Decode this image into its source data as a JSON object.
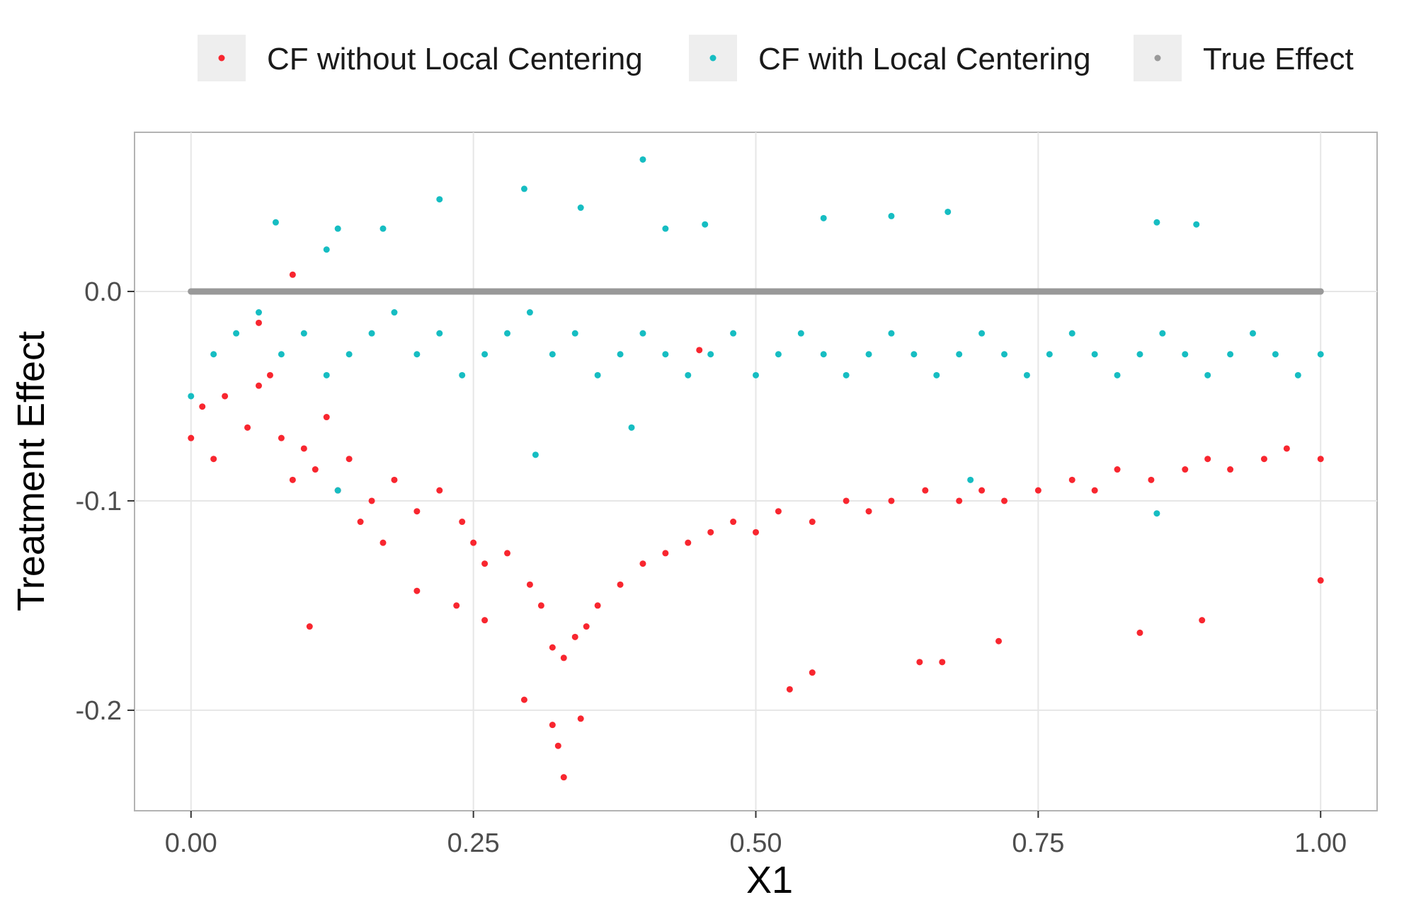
{
  "chart_data": {
    "type": "scatter",
    "xlabel": "X1",
    "ylabel": "Treatment Effect",
    "xlim": [
      -0.05,
      1.05
    ],
    "ylim": [
      -0.248,
      0.076
    ],
    "x_ticks": [
      0,
      0.25,
      0.5,
      0.75,
      1
    ],
    "x_tick_labels": [
      "0.00",
      "0.25",
      "0.50",
      "0.75",
      "1.00"
    ],
    "y_ticks": [
      -0.2,
      -0.1,
      0.0
    ],
    "y_tick_labels": [
      "-0.2",
      "-0.1",
      "0.0"
    ],
    "grid": true,
    "legend_position": "top",
    "series": [
      {
        "name": "CF without Local Centering",
        "color": "#F8262F",
        "points": [
          [
            0.0,
            -0.07
          ],
          [
            0.01,
            -0.055
          ],
          [
            0.02,
            -0.08
          ],
          [
            0.03,
            -0.05
          ],
          [
            0.05,
            -0.065
          ],
          [
            0.06,
            -0.045
          ],
          [
            0.07,
            -0.04
          ],
          [
            0.08,
            -0.07
          ],
          [
            0.09,
            -0.09
          ],
          [
            0.1,
            -0.075
          ],
          [
            0.11,
            -0.085
          ],
          [
            0.12,
            -0.06
          ],
          [
            0.13,
            -0.095
          ],
          [
            0.14,
            -0.08
          ],
          [
            0.15,
            -0.11
          ],
          [
            0.16,
            -0.1
          ],
          [
            0.17,
            -0.12
          ],
          [
            0.18,
            -0.09
          ],
          [
            0.2,
            -0.105
          ],
          [
            0.22,
            -0.095
          ],
          [
            0.24,
            -0.11
          ],
          [
            0.25,
            -0.12
          ],
          [
            0.26,
            -0.13
          ],
          [
            0.28,
            -0.125
          ],
          [
            0.3,
            -0.14
          ],
          [
            0.31,
            -0.15
          ],
          [
            0.32,
            -0.17
          ],
          [
            0.33,
            -0.175
          ],
          [
            0.34,
            -0.165
          ],
          [
            0.35,
            -0.16
          ],
          [
            0.36,
            -0.15
          ],
          [
            0.38,
            -0.14
          ],
          [
            0.4,
            -0.13
          ],
          [
            0.42,
            -0.125
          ],
          [
            0.44,
            -0.12
          ],
          [
            0.46,
            -0.115
          ],
          [
            0.48,
            -0.11
          ],
          [
            0.5,
            -0.115
          ],
          [
            0.52,
            -0.105
          ],
          [
            0.55,
            -0.11
          ],
          [
            0.58,
            -0.1
          ],
          [
            0.6,
            -0.105
          ],
          [
            0.62,
            -0.1
          ],
          [
            0.65,
            -0.095
          ],
          [
            0.68,
            -0.1
          ],
          [
            0.7,
            -0.095
          ],
          [
            0.72,
            -0.1
          ],
          [
            0.75,
            -0.095
          ],
          [
            0.78,
            -0.09
          ],
          [
            0.8,
            -0.095
          ],
          [
            0.82,
            -0.085
          ],
          [
            0.85,
            -0.09
          ],
          [
            0.88,
            -0.085
          ],
          [
            0.9,
            -0.08
          ],
          [
            0.92,
            -0.085
          ],
          [
            0.95,
            -0.08
          ],
          [
            0.97,
            -0.075
          ],
          [
            1.0,
            -0.08
          ],
          [
            0.09,
            0.008
          ],
          [
            0.105,
            -0.16
          ],
          [
            0.33,
            -0.232
          ],
          [
            0.325,
            -0.217
          ],
          [
            0.32,
            -0.207
          ],
          [
            0.345,
            -0.204
          ],
          [
            0.53,
            -0.19
          ],
          [
            0.55,
            -0.182
          ],
          [
            0.645,
            -0.177
          ],
          [
            0.665,
            -0.177
          ],
          [
            0.715,
            -0.167
          ],
          [
            0.84,
            -0.163
          ],
          [
            0.895,
            -0.157
          ],
          [
            1.0,
            -0.138
          ],
          [
            0.06,
            -0.015
          ],
          [
            0.2,
            -0.143
          ],
          [
            0.235,
            -0.15
          ],
          [
            0.26,
            -0.157
          ],
          [
            0.295,
            -0.195
          ],
          [
            0.45,
            -0.028
          ]
        ]
      },
      {
        "name": "CF with Local Centering",
        "color": "#16BDC2",
        "points": [
          [
            0.0,
            -0.05
          ],
          [
            0.02,
            -0.03
          ],
          [
            0.04,
            -0.02
          ],
          [
            0.06,
            -0.01
          ],
          [
            0.08,
            -0.03
          ],
          [
            0.1,
            -0.02
          ],
          [
            0.12,
            -0.04
          ],
          [
            0.14,
            -0.03
          ],
          [
            0.16,
            -0.02
          ],
          [
            0.18,
            -0.01
          ],
          [
            0.2,
            -0.03
          ],
          [
            0.22,
            -0.02
          ],
          [
            0.24,
            -0.04
          ],
          [
            0.26,
            -0.03
          ],
          [
            0.28,
            -0.02
          ],
          [
            0.3,
            -0.01
          ],
          [
            0.32,
            -0.03
          ],
          [
            0.34,
            -0.02
          ],
          [
            0.36,
            -0.04
          ],
          [
            0.38,
            -0.03
          ],
          [
            0.4,
            -0.02
          ],
          [
            0.42,
            -0.03
          ],
          [
            0.44,
            -0.04
          ],
          [
            0.46,
            -0.03
          ],
          [
            0.48,
            -0.02
          ],
          [
            0.5,
            -0.04
          ],
          [
            0.52,
            -0.03
          ],
          [
            0.54,
            -0.02
          ],
          [
            0.56,
            -0.03
          ],
          [
            0.58,
            -0.04
          ],
          [
            0.6,
            -0.03
          ],
          [
            0.62,
            -0.02
          ],
          [
            0.64,
            -0.03
          ],
          [
            0.66,
            -0.04
          ],
          [
            0.68,
            -0.03
          ],
          [
            0.7,
            -0.02
          ],
          [
            0.72,
            -0.03
          ],
          [
            0.74,
            -0.04
          ],
          [
            0.76,
            -0.03
          ],
          [
            0.78,
            -0.02
          ],
          [
            0.8,
            -0.03
          ],
          [
            0.82,
            -0.04
          ],
          [
            0.84,
            -0.03
          ],
          [
            0.86,
            -0.02
          ],
          [
            0.88,
            -0.03
          ],
          [
            0.9,
            -0.04
          ],
          [
            0.92,
            -0.03
          ],
          [
            0.94,
            -0.02
          ],
          [
            0.96,
            -0.03
          ],
          [
            0.98,
            -0.04
          ],
          [
            1.0,
            -0.03
          ],
          [
            0.4,
            0.063
          ],
          [
            0.295,
            0.049
          ],
          [
            0.22,
            0.044
          ],
          [
            0.345,
            0.04
          ],
          [
            0.67,
            0.038
          ],
          [
            0.56,
            0.035
          ],
          [
            0.075,
            0.033
          ],
          [
            0.855,
            0.033
          ],
          [
            0.89,
            0.032
          ],
          [
            0.62,
            0.036
          ],
          [
            0.13,
            0.03
          ],
          [
            0.17,
            0.03
          ],
          [
            0.455,
            0.032
          ],
          [
            0.42,
            0.03
          ],
          [
            0.12,
            0.02
          ],
          [
            0.305,
            -0.078
          ],
          [
            0.855,
            -0.106
          ],
          [
            0.13,
            -0.095
          ],
          [
            0.69,
            -0.09
          ],
          [
            0.39,
            -0.065
          ]
        ]
      },
      {
        "name": "True Effect",
        "color": "#999999",
        "points": [
          [
            0.0,
            0.0
          ],
          [
            0.25,
            0.0
          ],
          [
            0.5,
            0.0
          ],
          [
            0.75,
            0.0
          ],
          [
            1.0,
            0.0
          ]
        ]
      }
    ]
  }
}
